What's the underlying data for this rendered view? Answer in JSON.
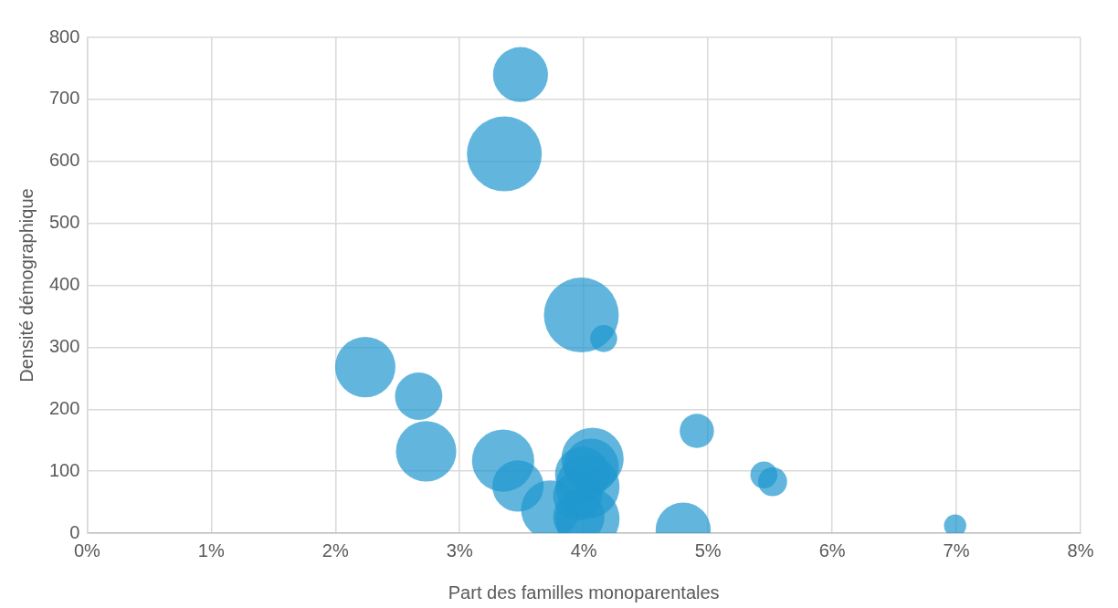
{
  "chart_data": {
    "type": "bubble",
    "xlabel": "Part des familles monoparentales",
    "ylabel": "Densité démographique",
    "x": [
      3.49,
      3.36,
      3.98,
      4.16,
      2.24,
      2.67,
      2.73,
      3.35,
      3.47,
      3.73,
      4.07,
      4.06,
      4.03,
      3.95,
      3.99,
      4.03,
      3.96,
      4.8,
      4.91,
      5.45,
      5.52,
      6.99
    ],
    "series": [
      {
        "color": "#1f97cf",
        "values": [
          740,
          612,
          352,
          314,
          268,
          221,
          132,
          117,
          76,
          38,
          120,
          108,
          75,
          60,
          95,
          23,
          26,
          5,
          165,
          94,
          83,
          12
        ],
        "sizes": [
          0.54,
          1,
          1,
          0.13,
          0.65,
          0.4,
          0.65,
          0.69,
          0.47,
          0.61,
          0.69,
          0.54,
          0.73,
          0.43,
          0.54,
          0.73,
          0.47,
          0.54,
          0.21,
          0.13,
          0.15,
          0.09
        ]
      }
    ],
    "xlim": [
      0,
      8
    ],
    "xticks": [
      {
        "value": 0,
        "label": "0%"
      },
      {
        "value": 1,
        "label": "1%"
      },
      {
        "value": 2,
        "label": "2%"
      },
      {
        "value": 3,
        "label": "3%"
      },
      {
        "value": 4,
        "label": "4%"
      },
      {
        "value": 5,
        "label": "5%"
      },
      {
        "value": 6,
        "label": "6%"
      },
      {
        "value": 7,
        "label": "7%"
      },
      {
        "value": 8,
        "label": "8%"
      }
    ],
    "ylim": [
      0,
      800
    ],
    "yticks": [
      0,
      100,
      200,
      300,
      400,
      500,
      600,
      700,
      800
    ],
    "grid": true,
    "legend": false
  }
}
